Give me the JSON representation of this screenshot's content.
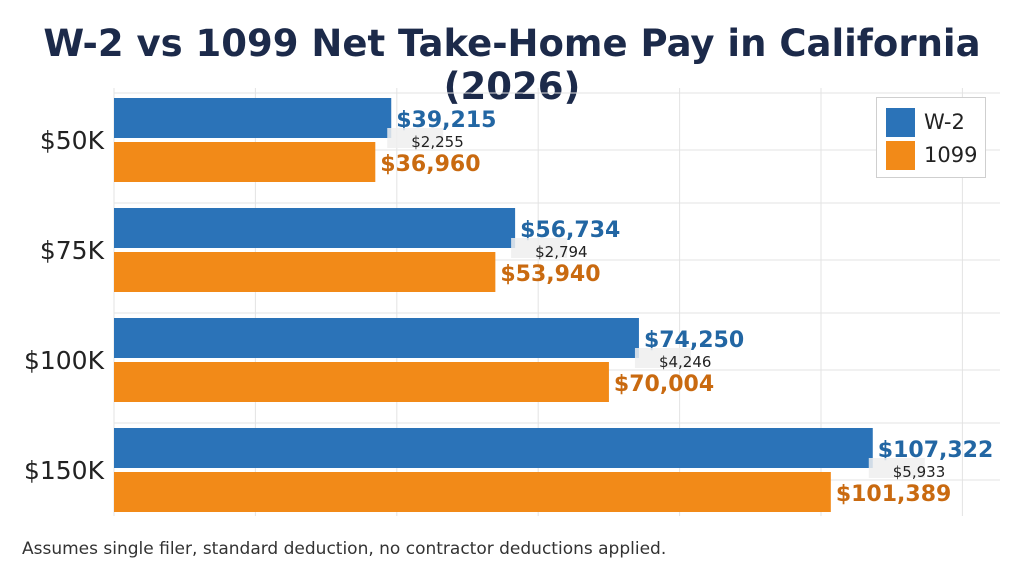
{
  "title": "W-2 vs 1099 Net Take-Home Pay in California (2026)",
  "footnote": "Assumes single filer, standard deduction, no contractor deductions applied.",
  "colors": {
    "w2": "#2b73b8",
    "c1099": "#f28a18",
    "w2_label": "#2266a3",
    "c1099_label": "#c96a10",
    "grid": "#e3e3e3"
  },
  "chart_data": {
    "type": "bar",
    "orientation": "horizontal",
    "title": "W-2 vs 1099 Net Take-Home Pay in California (2026)",
    "categories": [
      "$50K",
      "$75K",
      "$100K",
      "$150K"
    ],
    "series": [
      {
        "name": "W-2",
        "values": [
          39215,
          56734,
          74250,
          107322
        ],
        "labels": [
          "$39,215",
          "$56,734",
          "$74,250",
          "$107,322"
        ]
      },
      {
        "name": "1099",
        "values": [
          36960,
          53940,
          70004,
          101389
        ],
        "labels": [
          "$36,960",
          "$53,940",
          "$70,004",
          "$101,389"
        ]
      }
    ],
    "differences": [
      "$2,255",
      "$2,794",
      "$4,246",
      "$5,933"
    ],
    "xlim": [
      0,
      120000
    ],
    "grid": true,
    "legend": "top-right"
  }
}
